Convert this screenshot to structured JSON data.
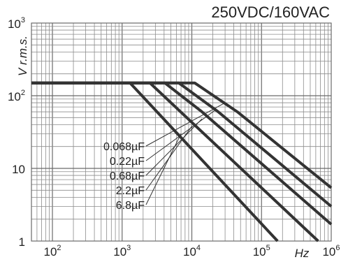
{
  "chart_data": {
    "type": "line",
    "title": "250VDC/160VAC",
    "xlabel": "Hz",
    "ylabel": "V r.m.s.",
    "x_scale": "log",
    "y_scale": "log",
    "xlim": [
      50,
      1000000
    ],
    "ylim": [
      1,
      1000
    ],
    "grid": true,
    "x_ticks": [
      {
        "base": "10",
        "exp": "2"
      },
      {
        "base": "10",
        "exp": "3"
      },
      {
        "base": "10",
        "exp": "4"
      },
      {
        "base": "10",
        "exp": "5"
      },
      {
        "base": "10",
        "exp": "6"
      }
    ],
    "y_ticks": [
      {
        "value": 1000,
        "base": "10",
        "exp": "3"
      },
      {
        "value": 100,
        "base": "10",
        "exp": "2"
      },
      {
        "value": 10,
        "base": "10",
        "exp": ""
      },
      {
        "value": 1,
        "base": "1",
        "exp": ""
      }
    ],
    "series": [
      {
        "name": "0.068µF",
        "points": [
          [
            50,
            150
          ],
          [
            11000,
            150
          ],
          [
            45000,
            60
          ],
          [
            1000000,
            5.4
          ]
        ]
      },
      {
        "name": "0.22µF",
        "points": [
          [
            50,
            150
          ],
          [
            6500,
            150
          ],
          [
            24000,
            60
          ],
          [
            1000000,
            3
          ]
        ]
      },
      {
        "name": "0.68µF",
        "points": [
          [
            50,
            150
          ],
          [
            4100,
            150
          ],
          [
            14000,
            60
          ],
          [
            1000000,
            1.7
          ]
        ]
      },
      {
        "name": "2.2µF",
        "points": [
          [
            50,
            150
          ],
          [
            2500,
            150
          ],
          [
            650000,
            1
          ]
        ]
      },
      {
        "name": "6.8µF",
        "points": [
          [
            50,
            150
          ],
          [
            1300,
            150
          ],
          [
            170000,
            1
          ]
        ]
      }
    ]
  }
}
